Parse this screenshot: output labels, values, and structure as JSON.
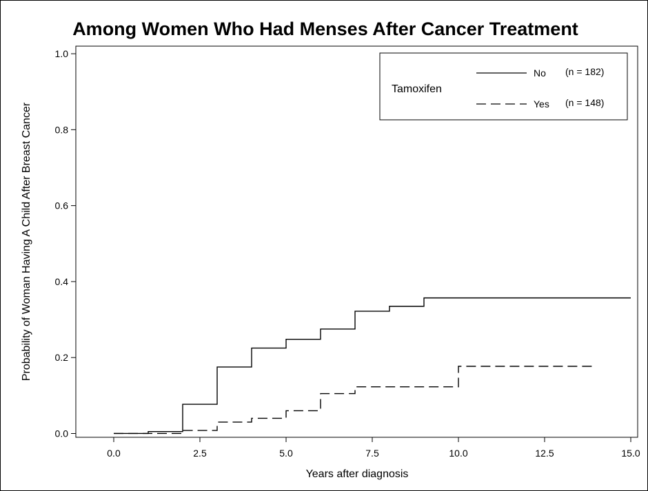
{
  "chart_data": {
    "type": "line",
    "title": "Among Women Who Had Menses After Cancer Treatment",
    "xlabel": "Years after diagnosis",
    "ylabel": "Probability of Woman Having A Child After Breast Cancer",
    "xlim": [
      -1.1,
      15.2
    ],
    "ylim": [
      -0.01,
      1.02
    ],
    "x_ticks": [
      "0.0",
      "2.5",
      "5.0",
      "7.5",
      "10.0",
      "12.5",
      "15.0"
    ],
    "y_ticks": [
      "0.0",
      "0.2",
      "0.4",
      "0.6",
      "0.8",
      "1.0"
    ],
    "grid": false,
    "legend": {
      "title": "Tamoxifen",
      "position": "top-right",
      "entries": [
        {
          "label": "No",
          "n": "(n = 182)",
          "style": "solid"
        },
        {
          "label": "Yes",
          "n": "(n = 148)",
          "style": "dashed"
        }
      ]
    },
    "series": [
      {
        "name": "No",
        "style": "solid",
        "color": "#000000",
        "x": [
          0,
          1,
          2,
          3,
          4,
          5,
          6,
          7,
          8,
          9,
          15
        ],
        "y": [
          0.0,
          0.005,
          0.077,
          0.175,
          0.225,
          0.248,
          0.275,
          0.322,
          0.335,
          0.357,
          0.357
        ]
      },
      {
        "name": "Yes",
        "style": "dashed",
        "color": "#000000",
        "x": [
          0,
          2,
          3,
          4,
          5,
          6,
          7,
          10,
          14
        ],
        "y": [
          0.0,
          0.008,
          0.03,
          0.04,
          0.06,
          0.105,
          0.123,
          0.177,
          0.177
        ]
      }
    ]
  }
}
